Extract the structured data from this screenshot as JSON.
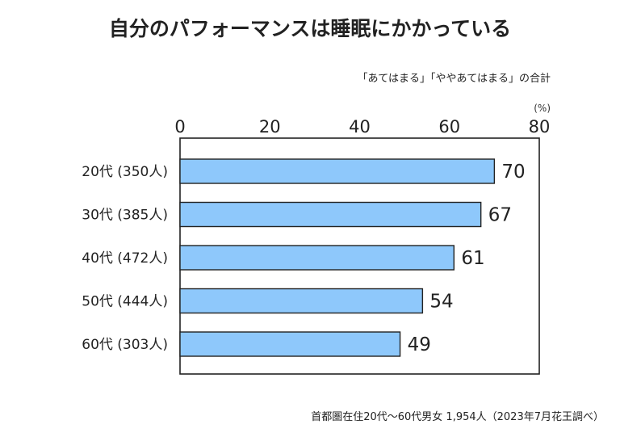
{
  "chart_data": {
    "type": "bar",
    "orientation": "horizontal",
    "title": "自分のパフォーマンスは睡眠にかかっている",
    "subtitle": "「あてはまる」「ややあてはまる」の合計",
    "unit": "(%)",
    "xlim": [
      0,
      80
    ],
    "xticks": [
      0,
      20,
      40,
      60,
      80
    ],
    "tick_labels": [
      "0",
      "20",
      "40",
      "60",
      "80"
    ],
    "categories": [
      "20代 (350人)",
      "30代 (385人)",
      "40代 (472人)",
      "50代 (444人)",
      "60代 (303人)"
    ],
    "values": [
      70,
      67,
      61,
      54,
      49
    ],
    "value_labels": [
      "70",
      "67",
      "61",
      "54",
      "49"
    ],
    "bar_color": "#8ec8fb",
    "bar_edge_color": "#222222",
    "grid": false,
    "source": "首都圏在住20代〜60代男女 1,954人（2023年7月花王調べ）"
  }
}
